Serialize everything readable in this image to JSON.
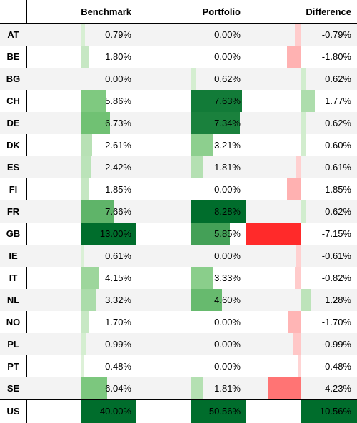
{
  "headers": {
    "col1": "Benchmark",
    "col2": "Portfolio",
    "col3": "Difference"
  },
  "rows": [
    {
      "code": "AT",
      "benchmark": "0.79%",
      "portfolio": "0.00%",
      "difference": "-0.79%",
      "b": 0.79,
      "p": 0.0,
      "d": -0.79
    },
    {
      "code": "BE",
      "benchmark": "1.80%",
      "portfolio": "0.00%",
      "difference": "-1.80%",
      "b": 1.8,
      "p": 0.0,
      "d": -1.8
    },
    {
      "code": "BG",
      "benchmark": "0.00%",
      "portfolio": "0.62%",
      "difference": "0.62%",
      "b": 0.0,
      "p": 0.62,
      "d": 0.62
    },
    {
      "code": "CH",
      "benchmark": "5.86%",
      "portfolio": "7.63%",
      "difference": "1.77%",
      "b": 5.86,
      "p": 7.63,
      "d": 1.77
    },
    {
      "code": "DE",
      "benchmark": "6.73%",
      "portfolio": "7.34%",
      "difference": "0.62%",
      "b": 6.73,
      "p": 7.34,
      "d": 0.62
    },
    {
      "code": "DK",
      "benchmark": "2.61%",
      "portfolio": "3.21%",
      "difference": "0.60%",
      "b": 2.61,
      "p": 3.21,
      "d": 0.6
    },
    {
      "code": "ES",
      "benchmark": "2.42%",
      "portfolio": "1.81%",
      "difference": "-0.61%",
      "b": 2.42,
      "p": 1.81,
      "d": -0.61
    },
    {
      "code": "FI",
      "benchmark": "1.85%",
      "portfolio": "0.00%",
      "difference": "-1.85%",
      "b": 1.85,
      "p": 0.0,
      "d": -1.85
    },
    {
      "code": "FR",
      "benchmark": "7.66%",
      "portfolio": "8.28%",
      "difference": "0.62%",
      "b": 7.66,
      "p": 8.28,
      "d": 0.62
    },
    {
      "code": "GB",
      "benchmark": "13.00%",
      "portfolio": "5.85%",
      "difference": "-7.15%",
      "b": 13.0,
      "p": 5.85,
      "d": -7.15
    },
    {
      "code": "IE",
      "benchmark": "0.61%",
      "portfolio": "0.00%",
      "difference": "-0.61%",
      "b": 0.61,
      "p": 0.0,
      "d": -0.61
    },
    {
      "code": "IT",
      "benchmark": "4.15%",
      "portfolio": "3.33%",
      "difference": "-0.82%",
      "b": 4.15,
      "p": 3.33,
      "d": -0.82
    },
    {
      "code": "NL",
      "benchmark": "3.32%",
      "portfolio": "4.60%",
      "difference": "1.28%",
      "b": 3.32,
      "p": 4.6,
      "d": 1.28
    },
    {
      "code": "NO",
      "benchmark": "1.70%",
      "portfolio": "0.00%",
      "difference": "-1.70%",
      "b": 1.7,
      "p": 0.0,
      "d": -1.7
    },
    {
      "code": "PL",
      "benchmark": "0.99%",
      "portfolio": "0.00%",
      "difference": "-0.99%",
      "b": 0.99,
      "p": 0.0,
      "d": -0.99
    },
    {
      "code": "PT",
      "benchmark": "0.48%",
      "portfolio": "0.00%",
      "difference": "-0.48%",
      "b": 0.48,
      "p": 0.0,
      "d": -0.48
    },
    {
      "code": "SE",
      "benchmark": "6.04%",
      "portfolio": "1.81%",
      "difference": "-4.23%",
      "b": 6.04,
      "p": 1.81,
      "d": -4.23
    },
    {
      "code": "US",
      "benchmark": "40.00%",
      "portfolio": "50.56%",
      "difference": "10.56%",
      "b": 40.0,
      "p": 50.56,
      "d": 10.56
    }
  ],
  "colors": {
    "positive_strong": "#006d2c",
    "positive_light": "#e5f5e0",
    "negative_strong": "#ff2a2a",
    "negative_light": "#ffe0e0",
    "row_alt": "#f3f3f3"
  }
}
